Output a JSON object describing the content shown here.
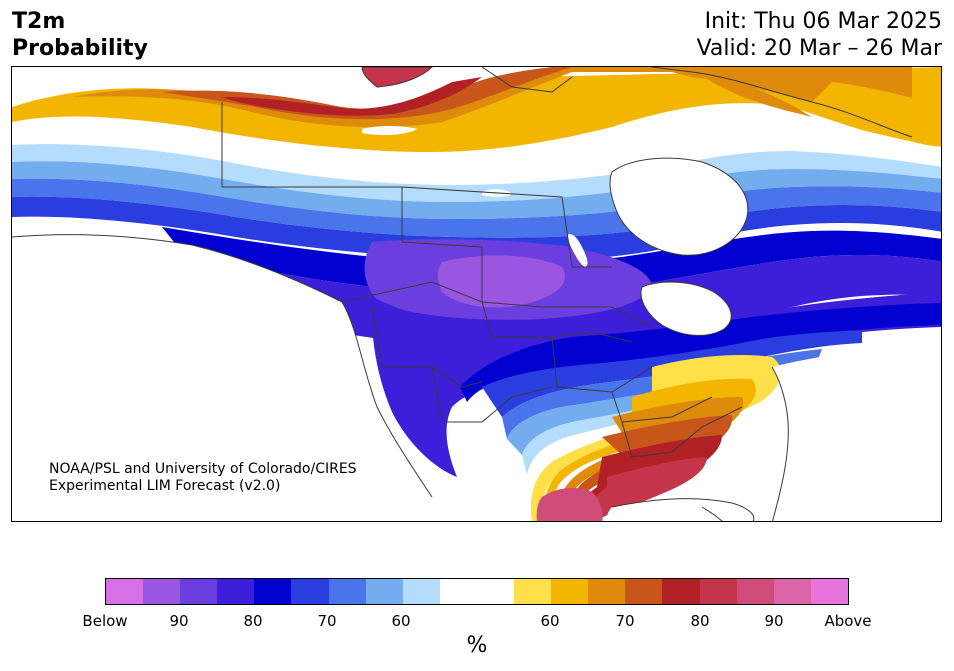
{
  "header": {
    "title_line1": "T2m",
    "title_line2": "Probability",
    "init_line": "Init: Thu 06 Mar 2025",
    "valid_line": "Valid: 20 Mar – 26 Mar"
  },
  "credit": {
    "line1": "NOAA/PSL and University of Colorado/CIRES",
    "line2": "Experimental LIM Forecast (v2.0)"
  },
  "colorbar": {
    "unit": "%",
    "tick_labels": [
      "Below",
      "90",
      "80",
      "70",
      "60",
      "60",
      "70",
      "80",
      "90",
      "Above"
    ],
    "colors": [
      "#d670e6",
      "#9a56e0",
      "#6b3ee0",
      "#3d1ed9",
      "#0000d0",
      "#2a3ee0",
      "#4a74ea",
      "#74acf0",
      "#b4dcfc",
      "#ffffff",
      "#ffffff",
      "#ffe04a",
      "#f2b600",
      "#de8a0a",
      "#c8561a",
      "#b02024",
      "#c4344a",
      "#d04c78",
      "#dc64a8",
      "#e674dc"
    ]
  },
  "map": {
    "region": "North America",
    "colors": {
      "land_outline": "#3a3a3a",
      "background": "#ffffff"
    }
  }
}
